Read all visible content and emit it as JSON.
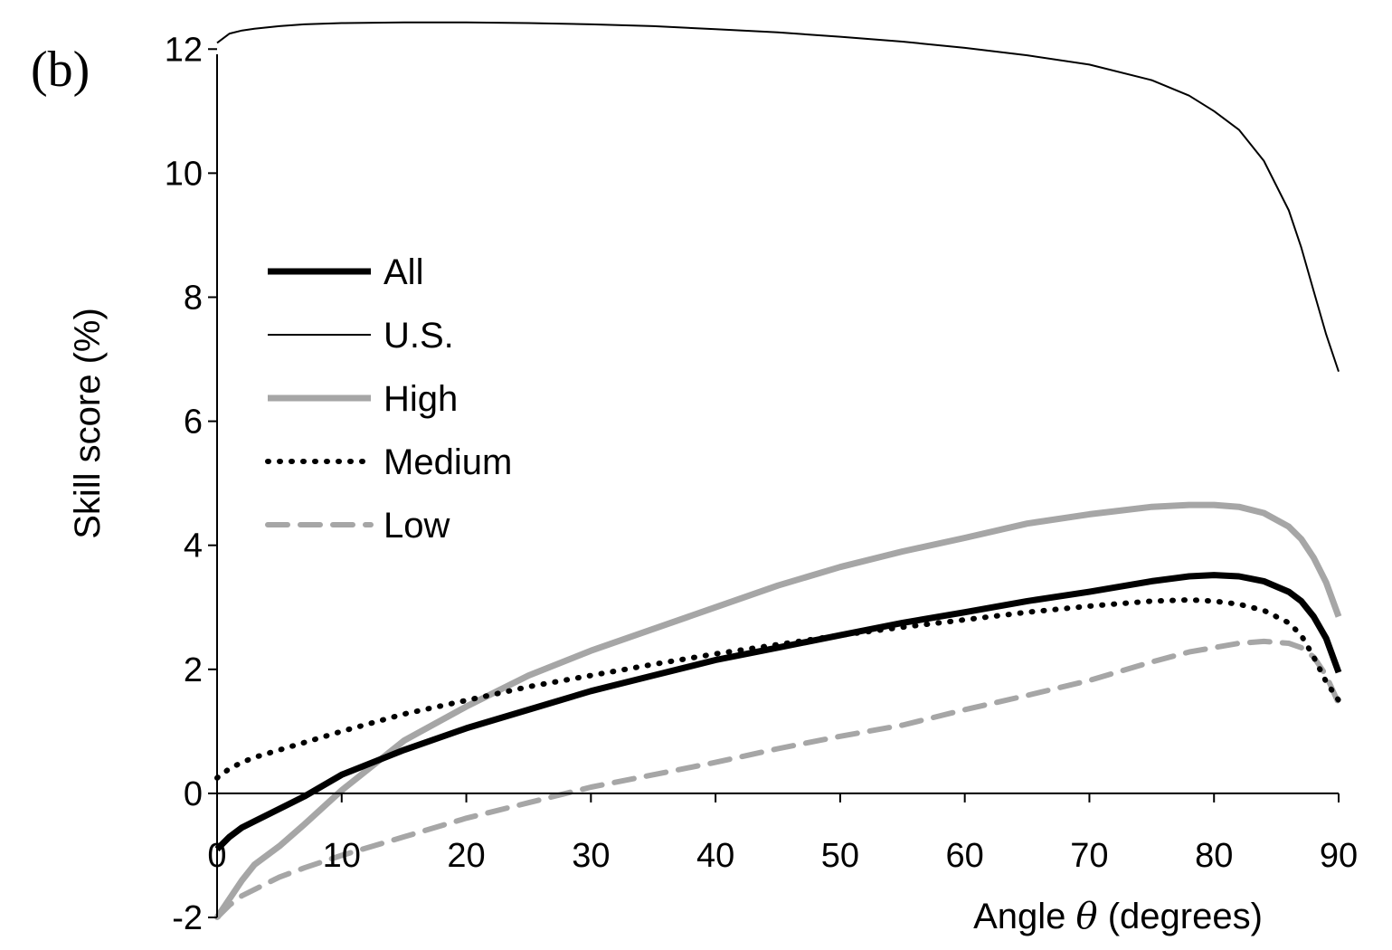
{
  "chart_data": {
    "type": "line",
    "panel_label": "(b)",
    "xlabel": {
      "prefix": "Angle ",
      "symbol": "θ",
      "suffix": " (degrees)"
    },
    "ylabel": "Skill score (%)",
    "xlim": [
      0,
      90
    ],
    "ylim": [
      -2,
      12.5
    ],
    "xticks": [
      0,
      10,
      20,
      30,
      40,
      50,
      60,
      70,
      80,
      90
    ],
    "yticks": [
      -2,
      0,
      2,
      4,
      6,
      8,
      10,
      12
    ],
    "grid": false,
    "legend_position": "left-middle",
    "x": [
      0,
      1,
      2,
      3,
      5,
      7,
      10,
      15,
      20,
      25,
      30,
      35,
      40,
      45,
      50,
      55,
      60,
      65,
      70,
      75,
      78,
      80,
      82,
      84,
      86,
      87,
      88,
      89,
      90
    ],
    "series": [
      {
        "name": "All",
        "style": {
          "color": "#000000",
          "width": 7,
          "dash": ""
        },
        "values": [
          -0.9,
          -0.7,
          -0.55,
          -0.45,
          -0.25,
          -0.05,
          0.3,
          0.7,
          1.05,
          1.35,
          1.65,
          1.9,
          2.15,
          2.35,
          2.55,
          2.75,
          2.92,
          3.1,
          3.25,
          3.42,
          3.5,
          3.52,
          3.5,
          3.42,
          3.25,
          3.1,
          2.85,
          2.5,
          1.95
        ]
      },
      {
        "name": "U.S.",
        "style": {
          "color": "#000000",
          "width": 2,
          "dash": ""
        },
        "values": [
          12.1,
          12.25,
          12.3,
          12.33,
          12.37,
          12.4,
          12.42,
          12.43,
          12.43,
          12.42,
          12.4,
          12.37,
          12.32,
          12.27,
          12.2,
          12.12,
          12.02,
          11.9,
          11.75,
          11.5,
          11.25,
          11.0,
          10.7,
          10.2,
          9.4,
          8.8,
          8.1,
          7.4,
          6.8
        ]
      },
      {
        "name": "High",
        "style": {
          "color": "#a6a6a6",
          "width": 7,
          "dash": ""
        },
        "values": [
          -2.0,
          -1.7,
          -1.4,
          -1.15,
          -0.85,
          -0.5,
          0.05,
          0.85,
          1.4,
          1.9,
          2.3,
          2.65,
          3.0,
          3.35,
          3.65,
          3.9,
          4.12,
          4.35,
          4.5,
          4.62,
          4.65,
          4.65,
          4.62,
          4.52,
          4.3,
          4.1,
          3.8,
          3.4,
          2.85
        ]
      },
      {
        "name": "Medium",
        "style": {
          "color": "#000000",
          "width": 6,
          "dash": "1 12"
        },
        "values": [
          0.25,
          0.4,
          0.5,
          0.58,
          0.7,
          0.82,
          1.0,
          1.28,
          1.5,
          1.72,
          1.9,
          2.08,
          2.25,
          2.4,
          2.55,
          2.68,
          2.8,
          2.92,
          3.02,
          3.1,
          3.12,
          3.1,
          3.05,
          2.95,
          2.75,
          2.55,
          2.2,
          1.8,
          1.5
        ]
      },
      {
        "name": "Low",
        "style": {
          "color": "#a6a6a6",
          "width": 6,
          "dash": "22 14"
        },
        "values": [
          -2.0,
          -1.8,
          -1.65,
          -1.55,
          -1.35,
          -1.2,
          -1.0,
          -0.7,
          -0.4,
          -0.15,
          0.1,
          0.3,
          0.5,
          0.72,
          0.92,
          1.1,
          1.35,
          1.58,
          1.82,
          2.12,
          2.28,
          2.35,
          2.42,
          2.45,
          2.42,
          2.35,
          2.2,
          1.9,
          1.45
        ]
      }
    ]
  }
}
